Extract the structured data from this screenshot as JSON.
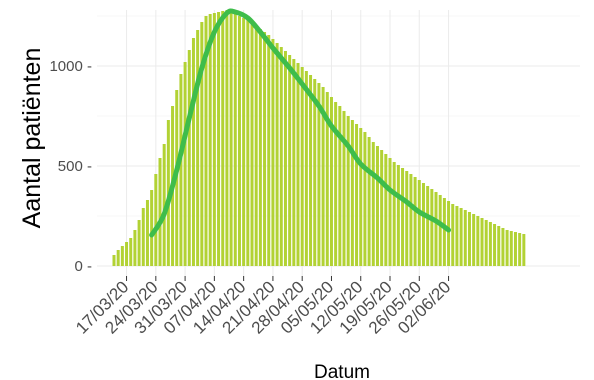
{
  "chart_data": {
    "type": "bar",
    "xlabel": "Datum",
    "ylabel": "Aantal patiënten",
    "ylim": [
      0,
      1300
    ],
    "yticks": [
      0,
      500,
      1000
    ],
    "ytick_labels": [
      "0 -",
      "500 -",
      "1000 -"
    ],
    "grid": true,
    "start_date": "2020-03-14",
    "xticks": [
      {
        "date": "2020-03-17",
        "label": "17/03/20"
      },
      {
        "date": "2020-03-24",
        "label": "24/03/20"
      },
      {
        "date": "2020-03-31",
        "label": "31/03/20"
      },
      {
        "date": "2020-04-07",
        "label": "07/04/20"
      },
      {
        "date": "2020-04-14",
        "label": "14/04/20"
      },
      {
        "date": "2020-04-21",
        "label": "21/04/20"
      },
      {
        "date": "2020-04-28",
        "label": "28/04/20"
      },
      {
        "date": "2020-05-05",
        "label": "05/05/20"
      },
      {
        "date": "2020-05-12",
        "label": "12/05/20"
      },
      {
        "date": "2020-05-19",
        "label": "19/05/20"
      },
      {
        "date": "2020-05-26",
        "label": "26/05/20"
      },
      {
        "date": "2020-06-02",
        "label": "02/06/20"
      }
    ],
    "series": [
      {
        "type": "bar",
        "color": "#b2d234",
        "values": [
          55,
          80,
          100,
          120,
          140,
          180,
          230,
          290,
          330,
          380,
          460,
          540,
          610,
          730,
          800,
          880,
          960,
          1020,
          1080,
          1140,
          1180,
          1220,
          1250,
          1260,
          1265,
          1270,
          1275,
          1280,
          1270,
          1260,
          1250,
          1240,
          1230,
          1215,
          1200,
          1185,
          1170,
          1155,
          1135,
          1115,
          1095,
          1075,
          1055,
          1035,
          1015,
          995,
          975,
          955,
          935,
          915,
          895,
          870,
          845,
          820,
          800,
          775,
          750,
          730,
          710,
          690,
          670,
          645,
          620,
          600,
          580,
          560,
          540,
          520,
          505,
          490,
          475,
          460,
          445,
          430,
          415,
          400,
          385,
          370,
          355,
          340,
          325,
          310,
          300,
          290,
          280,
          270,
          260,
          250,
          240,
          230,
          220,
          210,
          200,
          190,
          180,
          175,
          170,
          165,
          160
        ]
      },
      {
        "type": "line",
        "color": "#3ebd4b",
        "points": [
          {
            "date": "2020-03-23",
            "y": 155
          },
          {
            "date": "2020-03-26",
            "y": 260
          },
          {
            "date": "2020-03-29",
            "y": 480
          },
          {
            "date": "2020-04-01",
            "y": 740
          },
          {
            "date": "2020-04-04",
            "y": 990
          },
          {
            "date": "2020-04-07",
            "y": 1170
          },
          {
            "date": "2020-04-10",
            "y": 1265
          },
          {
            "date": "2020-04-12",
            "y": 1270
          },
          {
            "date": "2020-04-15",
            "y": 1240
          },
          {
            "date": "2020-04-18",
            "y": 1170
          },
          {
            "date": "2020-04-21",
            "y": 1090
          },
          {
            "date": "2020-04-25",
            "y": 990
          },
          {
            "date": "2020-04-28",
            "y": 910
          },
          {
            "date": "2020-05-02",
            "y": 800
          },
          {
            "date": "2020-05-05",
            "y": 700
          },
          {
            "date": "2020-05-09",
            "y": 600
          },
          {
            "date": "2020-05-12",
            "y": 510
          },
          {
            "date": "2020-05-16",
            "y": 440
          },
          {
            "date": "2020-05-19",
            "y": 380
          },
          {
            "date": "2020-05-23",
            "y": 320
          },
          {
            "date": "2020-05-26",
            "y": 270
          },
          {
            "date": "2020-05-30",
            "y": 225
          },
          {
            "date": "2020-06-02",
            "y": 180
          }
        ]
      }
    ]
  }
}
